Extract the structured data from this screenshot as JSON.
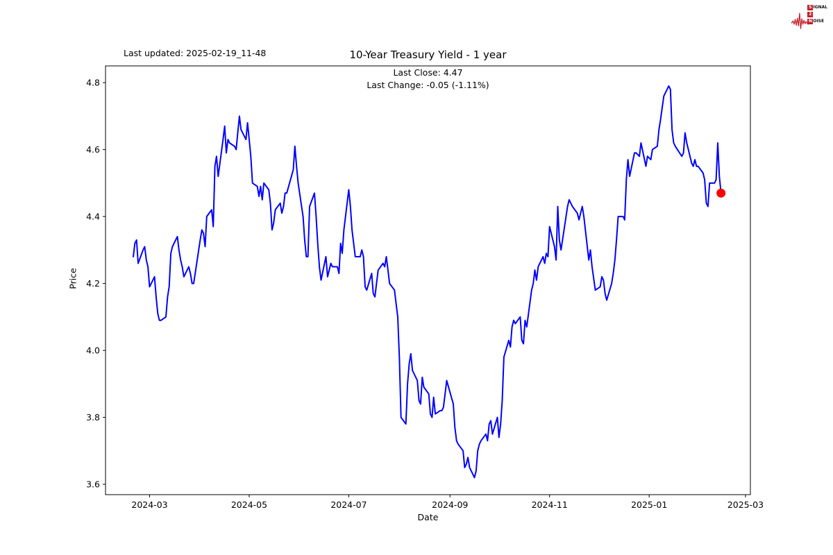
{
  "header": {
    "last_updated": "Last updated: 2025-02-19_11-48",
    "title": "10-Year Treasury Yield - 1 year",
    "subtitle_close": "Last Close: 4.47",
    "subtitle_change": "Last Change: -0.05 (-1.11%)"
  },
  "logo": {
    "line1_lead": "S",
    "line1_rest": "IGNAL",
    "line2_lead": "2",
    "line2_rest": "",
    "line3_lead": "N",
    "line3_rest": "OISE",
    "color": "#c2202a"
  },
  "colors": {
    "line": "#0000ff",
    "marker": "#ff0000",
    "spine": "#000000",
    "text": "#000000",
    "background": "#ffffff"
  },
  "chart_data": {
    "type": "line",
    "title": "10-Year Treasury Yield - 1 year",
    "xlabel": "Date",
    "ylabel": "Price",
    "legend": null,
    "grid": false,
    "x_domain": [
      "2024-02-03",
      "2025-03-04"
    ],
    "ylim": [
      3.569,
      4.85
    ],
    "x_ticks": [
      {
        "label": "2024-03",
        "date": "2024-03-01"
      },
      {
        "label": "2024-05",
        "date": "2024-05-01"
      },
      {
        "label": "2024-07",
        "date": "2024-07-01"
      },
      {
        "label": "2024-09",
        "date": "2024-09-01"
      },
      {
        "label": "2024-11",
        "date": "2024-11-01"
      },
      {
        "label": "2025-01",
        "date": "2025-01-01"
      },
      {
        "label": "2025-03",
        "date": "2025-03-01"
      }
    ],
    "y_ticks": [
      {
        "label": "3.6",
        "value": 3.6
      },
      {
        "label": "3.8",
        "value": 3.8
      },
      {
        "label": "4.0",
        "value": 4.0
      },
      {
        "label": "4.2",
        "value": 4.2
      },
      {
        "label": "4.4",
        "value": 4.4
      },
      {
        "label": "4.6",
        "value": 4.6
      },
      {
        "label": "4.8",
        "value": 4.8
      }
    ],
    "last_close": 4.47,
    "last_change": -0.05,
    "last_change_pct": -1.11,
    "series": [
      {
        "name": "10-Year Treasury Yield",
        "dates": [
          "2024-02-20",
          "2024-02-21",
          "2024-02-22",
          "2024-02-23",
          "2024-02-26",
          "2024-02-27",
          "2024-02-28",
          "2024-02-29",
          "2024-03-01",
          "2024-03-04",
          "2024-03-05",
          "2024-03-06",
          "2024-03-07",
          "2024-03-08",
          "2024-03-11",
          "2024-03-12",
          "2024-03-13",
          "2024-03-14",
          "2024-03-15",
          "2024-03-18",
          "2024-03-19",
          "2024-03-20",
          "2024-03-21",
          "2024-03-22",
          "2024-03-25",
          "2024-03-26",
          "2024-03-27",
          "2024-03-28",
          "2024-04-01",
          "2024-04-02",
          "2024-04-03",
          "2024-04-04",
          "2024-04-05",
          "2024-04-08",
          "2024-04-09",
          "2024-04-10",
          "2024-04-11",
          "2024-04-12",
          "2024-04-15",
          "2024-04-16",
          "2024-04-17",
          "2024-04-18",
          "2024-04-19",
          "2024-04-22",
          "2024-04-23",
          "2024-04-24",
          "2024-04-25",
          "2024-04-26",
          "2024-04-29",
          "2024-04-30",
          "2024-05-01",
          "2024-05-02",
          "2024-05-03",
          "2024-05-06",
          "2024-05-07",
          "2024-05-08",
          "2024-05-09",
          "2024-05-10",
          "2024-05-13",
          "2024-05-14",
          "2024-05-15",
          "2024-05-16",
          "2024-05-17",
          "2024-05-20",
          "2024-05-21",
          "2024-05-22",
          "2024-05-23",
          "2024-05-24",
          "2024-05-28",
          "2024-05-29",
          "2024-05-30",
          "2024-05-31",
          "2024-06-03",
          "2024-06-04",
          "2024-06-05",
          "2024-06-06",
          "2024-06-07",
          "2024-06-10",
          "2024-06-11",
          "2024-06-12",
          "2024-06-13",
          "2024-06-14",
          "2024-06-17",
          "2024-06-18",
          "2024-06-20",
          "2024-06-21",
          "2024-06-24",
          "2024-06-25",
          "2024-06-26",
          "2024-06-27",
          "2024-06-28",
          "2024-07-01",
          "2024-07-02",
          "2024-07-03",
          "2024-07-05",
          "2024-07-08",
          "2024-07-09",
          "2024-07-10",
          "2024-07-11",
          "2024-07-12",
          "2024-07-15",
          "2024-07-16",
          "2024-07-17",
          "2024-07-18",
          "2024-07-19",
          "2024-07-22",
          "2024-07-23",
          "2024-07-24",
          "2024-07-25",
          "2024-07-26",
          "2024-07-29",
          "2024-07-30",
          "2024-07-31",
          "2024-08-01",
          "2024-08-02",
          "2024-08-05",
          "2024-08-06",
          "2024-08-07",
          "2024-08-08",
          "2024-08-09",
          "2024-08-12",
          "2024-08-13",
          "2024-08-14",
          "2024-08-15",
          "2024-08-16",
          "2024-08-19",
          "2024-08-20",
          "2024-08-21",
          "2024-08-22",
          "2024-08-23",
          "2024-08-26",
          "2024-08-27",
          "2024-08-28",
          "2024-08-29",
          "2024-08-30",
          "2024-09-03",
          "2024-09-04",
          "2024-09-05",
          "2024-09-06",
          "2024-09-09",
          "2024-09-10",
          "2024-09-11",
          "2024-09-12",
          "2024-09-13",
          "2024-09-16",
          "2024-09-17",
          "2024-09-18",
          "2024-09-19",
          "2024-09-20",
          "2024-09-23",
          "2024-09-24",
          "2024-09-25",
          "2024-09-26",
          "2024-09-27",
          "2024-09-30",
          "2024-10-01",
          "2024-10-02",
          "2024-10-03",
          "2024-10-04",
          "2024-10-07",
          "2024-10-08",
          "2024-10-09",
          "2024-10-10",
          "2024-10-11",
          "2024-10-14",
          "2024-10-15",
          "2024-10-16",
          "2024-10-17",
          "2024-10-18",
          "2024-10-21",
          "2024-10-22",
          "2024-10-23",
          "2024-10-24",
          "2024-10-25",
          "2024-10-28",
          "2024-10-29",
          "2024-10-30",
          "2024-10-31",
          "2024-11-01",
          "2024-11-04",
          "2024-11-05",
          "2024-11-06",
          "2024-11-07",
          "2024-11-08",
          "2024-11-12",
          "2024-11-13",
          "2024-11-14",
          "2024-11-15",
          "2024-11-18",
          "2024-11-19",
          "2024-11-20",
          "2024-11-21",
          "2024-11-22",
          "2024-11-25",
          "2024-11-26",
          "2024-11-27",
          "2024-11-29",
          "2024-12-02",
          "2024-12-03",
          "2024-12-04",
          "2024-12-05",
          "2024-12-06",
          "2024-12-09",
          "2024-12-10",
          "2024-12-11",
          "2024-12-12",
          "2024-12-13",
          "2024-12-16",
          "2024-12-17",
          "2024-12-18",
          "2024-12-19",
          "2024-12-20",
          "2024-12-23",
          "2024-12-24",
          "2024-12-26",
          "2024-12-27",
          "2024-12-30",
          "2024-12-31",
          "2025-01-02",
          "2025-01-03",
          "2025-01-06",
          "2025-01-07",
          "2025-01-08",
          "2025-01-10",
          "2025-01-13",
          "2025-01-14",
          "2025-01-15",
          "2025-01-16",
          "2025-01-17",
          "2025-01-21",
          "2025-01-22",
          "2025-01-23",
          "2025-01-24",
          "2025-01-27",
          "2025-01-28",
          "2025-01-29",
          "2025-01-30",
          "2025-01-31",
          "2025-02-03",
          "2025-02-04",
          "2025-02-05",
          "2025-02-06",
          "2025-02-07",
          "2025-02-10",
          "2025-02-11",
          "2025-02-12",
          "2025-02-13",
          "2025-02-14"
        ],
        "values": [
          4.28,
          4.32,
          4.33,
          4.26,
          4.3,
          4.31,
          4.27,
          4.25,
          4.19,
          4.22,
          4.16,
          4.11,
          4.09,
          4.09,
          4.1,
          4.16,
          4.19,
          4.29,
          4.31,
          4.34,
          4.3,
          4.27,
          4.25,
          4.22,
          4.25,
          4.23,
          4.2,
          4.2,
          4.33,
          4.36,
          4.35,
          4.31,
          4.4,
          4.42,
          4.37,
          4.55,
          4.58,
          4.52,
          4.63,
          4.67,
          4.59,
          4.63,
          4.62,
          4.61,
          4.6,
          4.65,
          4.7,
          4.66,
          4.63,
          4.68,
          4.63,
          4.58,
          4.5,
          4.49,
          4.46,
          4.49,
          4.45,
          4.5,
          4.48,
          4.44,
          4.36,
          4.38,
          4.42,
          4.44,
          4.41,
          4.43,
          4.47,
          4.47,
          4.54,
          4.61,
          4.55,
          4.5,
          4.4,
          4.33,
          4.28,
          4.28,
          4.43,
          4.47,
          4.4,
          4.32,
          4.25,
          4.21,
          4.28,
          4.22,
          4.26,
          4.25,
          4.25,
          4.23,
          4.32,
          4.29,
          4.36,
          4.48,
          4.43,
          4.36,
          4.28,
          4.28,
          4.3,
          4.28,
          4.19,
          4.18,
          4.23,
          4.17,
          4.16,
          4.2,
          4.24,
          4.26,
          4.25,
          4.28,
          4.24,
          4.2,
          4.18,
          4.14,
          4.1,
          3.98,
          3.8,
          3.78,
          3.9,
          3.96,
          3.99,
          3.94,
          3.91,
          3.85,
          3.84,
          3.92,
          3.89,
          3.87,
          3.81,
          3.8,
          3.86,
          3.81,
          3.82,
          3.82,
          3.83,
          3.87,
          3.91,
          3.84,
          3.77,
          3.73,
          3.72,
          3.7,
          3.65,
          3.66,
          3.68,
          3.65,
          3.62,
          3.64,
          3.7,
          3.72,
          3.73,
          3.75,
          3.73,
          3.78,
          3.79,
          3.75,
          3.8,
          3.74,
          3.78,
          3.85,
          3.98,
          4.03,
          4.01,
          4.07,
          4.09,
          4.08,
          4.1,
          4.03,
          4.02,
          4.09,
          4.07,
          4.18,
          4.2,
          4.24,
          4.21,
          4.25,
          4.28,
          4.26,
          4.29,
          4.28,
          4.37,
          4.31,
          4.27,
          4.43,
          4.33,
          4.3,
          4.43,
          4.45,
          4.44,
          4.43,
          4.41,
          4.39,
          4.41,
          4.43,
          4.4,
          4.27,
          4.3,
          4.25,
          4.18,
          4.19,
          4.22,
          4.21,
          4.17,
          4.15,
          4.2,
          4.23,
          4.27,
          4.33,
          4.4,
          4.4,
          4.39,
          4.51,
          4.57,
          4.52,
          4.59,
          4.59,
          4.58,
          4.62,
          4.55,
          4.58,
          4.57,
          4.6,
          4.61,
          4.66,
          4.69,
          4.76,
          4.79,
          4.78,
          4.66,
          4.62,
          4.61,
          4.58,
          4.59,
          4.65,
          4.62,
          4.56,
          4.55,
          4.57,
          4.55,
          4.55,
          4.53,
          4.51,
          4.44,
          4.43,
          4.5,
          4.5,
          4.51,
          4.62,
          4.52,
          4.47
        ]
      }
    ]
  }
}
